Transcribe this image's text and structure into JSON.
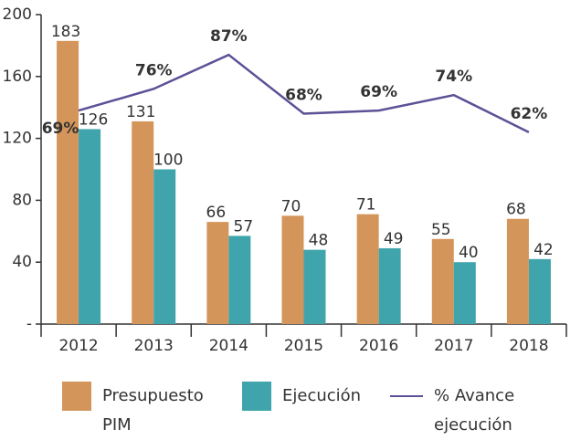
{
  "chart_data": {
    "type": "bar_line",
    "categories": [
      "2012",
      "2013",
      "2014",
      "2015",
      "2016",
      "2017",
      "2018"
    ],
    "series": [
      {
        "name": "Presupuesto PIM",
        "type": "bar",
        "color": "#d4955a",
        "values": [
          183,
          131,
          66,
          70,
          71,
          55,
          68
        ]
      },
      {
        "name": "Ejecución",
        "type": "bar",
        "color": "#40a4ad",
        "values": [
          126,
          100,
          57,
          48,
          49,
          40,
          42
        ]
      },
      {
        "name": "% Avance ejecución",
        "type": "line",
        "axis": "y2",
        "color": "#5d5096",
        "values": [
          69,
          76,
          87,
          68,
          69,
          74,
          62
        ],
        "value_labels": [
          "69%",
          "76%",
          "87%",
          "68%",
          "69%",
          "74%",
          "62%"
        ]
      }
    ],
    "ylim": [
      0,
      200
    ],
    "yticks": [
      {
        "value": 0,
        "label": "-"
      },
      40,
      80,
      120,
      160,
      200
    ],
    "y2lim": [
      0,
      100
    ],
    "grid": false
  }
}
